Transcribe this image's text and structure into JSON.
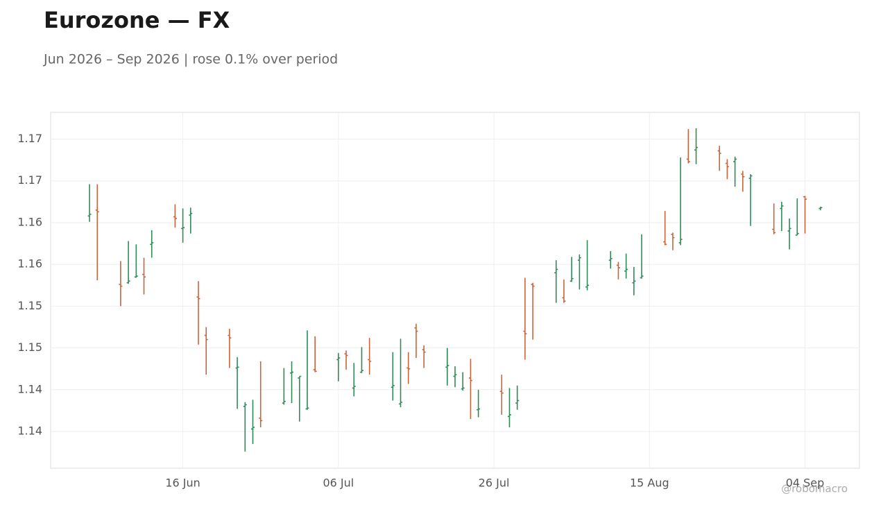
{
  "chart_data": {
    "type": "ohlc",
    "title": "Eurozone — FX",
    "subtitle": "Jun 2026 – Sep 2026 | rose 0.1% over period",
    "watermark": "@robomacro",
    "up_color": "#2e8b57",
    "down_color": "#c8643c",
    "grid": true,
    "x": [
      "2026-06-04",
      "2026-06-05",
      "2026-06-08",
      "2026-06-09",
      "2026-06-10",
      "2026-06-11",
      "2026-06-12",
      "2026-06-15",
      "2026-06-16",
      "2026-06-17",
      "2026-06-18",
      "2026-06-19",
      "2026-06-22",
      "2026-06-23",
      "2026-06-24",
      "2026-06-25",
      "2026-06-26",
      "2026-06-29",
      "2026-06-30",
      "2026-07-01",
      "2026-07-02",
      "2026-07-03",
      "2026-07-06",
      "2026-07-07",
      "2026-07-08",
      "2026-07-09",
      "2026-07-10",
      "2026-07-13",
      "2026-07-14",
      "2026-07-15",
      "2026-07-16",
      "2026-07-17",
      "2026-07-20",
      "2026-07-21",
      "2026-07-22",
      "2026-07-23",
      "2026-07-24",
      "2026-07-27",
      "2026-07-28",
      "2026-07-29",
      "2026-07-30",
      "2026-07-31",
      "2026-08-03",
      "2026-08-04",
      "2026-08-05",
      "2026-08-06",
      "2026-08-07",
      "2026-08-10",
      "2026-08-11",
      "2026-08-12",
      "2026-08-13",
      "2026-08-14",
      "2026-08-17",
      "2026-08-18",
      "2026-08-19",
      "2026-08-20",
      "2026-08-21",
      "2026-08-24",
      "2026-08-25",
      "2026-08-26",
      "2026-08-27",
      "2026-08-28",
      "2026-08-31",
      "2026-09-01",
      "2026-09-02",
      "2026-09-03",
      "2026-09-04",
      "2026-09-06"
    ],
    "open": [
      1.1633,
      1.164,
      1.1551,
      1.1553,
      1.156,
      1.1563,
      1.1599,
      1.1632,
      1.1618,
      1.1634,
      1.1536,
      1.149,
      1.149,
      1.1451,
      1.1405,
      1.1378,
      1.1391,
      1.1409,
      1.1445,
      1.1439,
      1.1402,
      1.1449,
      1.1461,
      1.1468,
      1.1427,
      1.1446,
      1.1461,
      1.1428,
      1.1408,
      1.1451,
      1.1499,
      1.1473,
      1.1452,
      1.1441,
      1.1426,
      1.1439,
      1.1401,
      1.1423,
      1.1393,
      1.1409,
      1.1495,
      1.1551,
      1.1565,
      1.1535,
      1.1555,
      1.158,
      1.1548,
      1.158,
      1.1574,
      1.1567,
      1.1553,
      1.1559,
      1.1602,
      1.1611,
      1.1601,
      1.1701,
      1.1712,
      1.1711,
      1.1696,
      1.1698,
      1.1683,
      1.1678,
      1.1617,
      1.1642,
      1.1615,
      1.161,
      1.1656,
      1.1642
    ],
    "high": [
      1.1671,
      1.1671,
      1.1579,
      1.1603,
      1.1599,
      1.1583,
      1.1616,
      1.1647,
      1.1642,
      1.1643,
      1.1555,
      1.15,
      1.1498,
      1.1464,
      1.141,
      1.1413,
      1.1459,
      1.1451,
      1.1459,
      1.1441,
      1.1496,
      1.1489,
      1.1469,
      1.1472,
      1.1457,
      1.1476,
      1.1487,
      1.147,
      1.1486,
      1.147,
      1.1504,
      1.1478,
      1.1475,
      1.1453,
      1.1446,
      1.1462,
      1.1425,
      1.1443,
      1.1427,
      1.143,
      1.1559,
      1.1553,
      1.158,
      1.1557,
      1.1584,
      1.1587,
      1.1604,
      1.1591,
      1.1578,
      1.1588,
      1.1572,
      1.1611,
      1.1639,
      1.1613,
      1.1703,
      1.1737,
      1.1738,
      1.1717,
      1.1701,
      1.1704,
      1.1687,
      1.1683,
      1.1648,
      1.165,
      1.163,
      1.1654,
      1.1657,
      1.1644
    ],
    "low": [
      1.1626,
      1.1556,
      1.1525,
      1.1552,
      1.1559,
      1.1539,
      1.1583,
      1.1619,
      1.1601,
      1.1612,
      1.1479,
      1.1443,
      1.1451,
      1.1402,
      1.1351,
      1.136,
      1.138,
      1.1407,
      1.1409,
      1.1387,
      1.1401,
      1.1446,
      1.1435,
      1.1449,
      1.1417,
      1.1445,
      1.1443,
      1.1412,
      1.1404,
      1.1432,
      1.1463,
      1.1451,
      1.143,
      1.1428,
      1.1424,
      1.139,
      1.1392,
      1.1395,
      1.138,
      1.1401,
      1.1461,
      1.1485,
      1.1529,
      1.1529,
      1.1554,
      1.1545,
      1.1544,
      1.157,
      1.1557,
      1.1558,
      1.1538,
      1.1558,
      1.1598,
      1.1592,
      1.1598,
      1.1696,
      1.1695,
      1.1687,
      1.1677,
      1.1668,
      1.1662,
      1.1621,
      1.1611,
      1.1615,
      1.1593,
      1.161,
      1.1612,
      1.164
    ],
    "close": [
      1.1635,
      1.1638,
      1.1549,
      1.1555,
      1.1561,
      1.156,
      1.1601,
      1.163,
      1.1619,
      1.1636,
      1.1534,
      1.1485,
      1.1487,
      1.1452,
      1.1407,
      1.138,
      1.1388,
      1.1411,
      1.1446,
      1.1441,
      1.1403,
      1.1447,
      1.1463,
      1.1466,
      1.1429,
      1.1448,
      1.1459,
      1.143,
      1.141,
      1.145,
      1.1495,
      1.147,
      1.1454,
      1.1443,
      1.1427,
      1.1436,
      1.1402,
      1.1421,
      1.1395,
      1.1412,
      1.1492,
      1.1549,
      1.1569,
      1.1531,
      1.1558,
      1.1583,
      1.155,
      1.1582,
      1.1571,
      1.1569,
      1.1555,
      1.1561,
      1.1599,
      1.1607,
      1.1605,
      1.1698,
      1.1715,
      1.1708,
      1.1692,
      1.1701,
      1.168,
      1.1681,
      1.1613,
      1.1645,
      1.1618,
      1.1612,
      1.1653,
      1.1643
    ],
    "xlim": [
      "2026-05-30",
      "2026-09-11"
    ],
    "xticks": [
      {
        "value": "2026-06-16",
        "label": "16 Jun"
      },
      {
        "value": "2026-07-06",
        "label": "06 Jul"
      },
      {
        "value": "2026-07-26",
        "label": "26 Jul"
      },
      {
        "value": "2026-08-15",
        "label": "15 Aug"
      },
      {
        "value": "2026-09-04",
        "label": "04 Sep"
      }
    ],
    "ylim": [
      1.1331,
      1.1757
    ],
    "yticks": [
      {
        "value": 1.1375,
        "label": "1.14"
      },
      {
        "value": 1.1425,
        "label": "1.14"
      },
      {
        "value": 1.1475,
        "label": "1.15"
      },
      {
        "value": 1.1525,
        "label": "1.15"
      },
      {
        "value": 1.1575,
        "label": "1.16"
      },
      {
        "value": 1.1625,
        "label": "1.16"
      },
      {
        "value": 1.1675,
        "label": "1.17"
      },
      {
        "value": 1.1725,
        "label": "1.17"
      }
    ]
  }
}
